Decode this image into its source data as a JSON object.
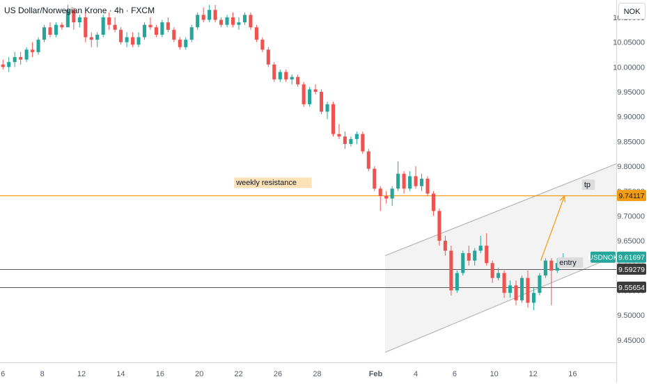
{
  "header": {
    "title": "US Dollar/Norwegian Krone · 4h · FXCM",
    "currency_button": "NOK"
  },
  "chart_data": {
    "type": "candlestick",
    "symbol": "USDNOK",
    "timeframe": "4h",
    "ylim": [
      9.405,
      10.135
    ],
    "xlim": [
      -0.5,
      104
    ],
    "y_ticks": [
      "10.10000",
      "10.05000",
      "10.00000",
      "9.95000",
      "9.90000",
      "9.85000",
      "9.80000",
      "9.75000",
      "9.70000",
      "9.65000",
      "9.60000",
      "9.55000",
      "9.50000",
      "9.45000"
    ],
    "x_ticks": [
      {
        "label": "6",
        "x": 0
      },
      {
        "label": "8",
        "x": 6.66
      },
      {
        "label": "12",
        "x": 13.32
      },
      {
        "label": "14",
        "x": 19.98
      },
      {
        "label": "16",
        "x": 26.64
      },
      {
        "label": "20",
        "x": 33.3
      },
      {
        "label": "22",
        "x": 39.96
      },
      {
        "label": "26",
        "x": 46.62
      },
      {
        "label": "28",
        "x": 53.28
      },
      {
        "label": "Feb",
        "x": 63.2
      },
      {
        "label": "4",
        "x": 70.0
      },
      {
        "label": "6",
        "x": 76.6
      },
      {
        "label": "10",
        "x": 83.3
      },
      {
        "label": "12",
        "x": 89.9
      },
      {
        "label": "16",
        "x": 96.6
      }
    ],
    "colors": {
      "up": "#26a69a",
      "down": "#ef5350",
      "resistance": "#f39c12",
      "level": "#555555",
      "channel": "#b8b8b8",
      "price": "#26a69a",
      "dark_label": "#3b3b3b"
    },
    "candles": [
      [
        10.005,
        10.015,
        9.995,
        10.0
      ],
      [
        10.0,
        10.02,
        9.99,
        10.01
      ],
      [
        10.01,
        10.03,
        10.0,
        10.02
      ],
      [
        10.02,
        10.03,
        10.005,
        10.015
      ],
      [
        10.015,
        10.04,
        10.01,
        10.035
      ],
      [
        10.035,
        10.05,
        10.02,
        10.03
      ],
      [
        10.03,
        10.06,
        10.025,
        10.055
      ],
      [
        10.055,
        10.085,
        10.05,
        10.08
      ],
      [
        10.08,
        10.09,
        10.06,
        10.065
      ],
      [
        10.065,
        10.09,
        10.06,
        10.085
      ],
      [
        10.085,
        10.09,
        10.075,
        10.08
      ],
      [
        10.08,
        10.125,
        10.08,
        10.115
      ],
      [
        10.115,
        10.12,
        10.075,
        10.09
      ],
      [
        10.09,
        10.105,
        10.08,
        10.1
      ],
      [
        10.1,
        10.11,
        10.05,
        10.06
      ],
      [
        10.06,
        10.07,
        10.04,
        10.055
      ],
      [
        10.055,
        10.07,
        10.04,
        10.065
      ],
      [
        10.065,
        10.105,
        10.06,
        10.1
      ],
      [
        10.1,
        10.11,
        10.075,
        10.085
      ],
      [
        10.085,
        10.1,
        10.07,
        10.075
      ],
      [
        10.075,
        10.08,
        10.045,
        10.05
      ],
      [
        10.05,
        10.07,
        10.04,
        10.06
      ],
      [
        10.06,
        10.07,
        10.04,
        10.045
      ],
      [
        10.045,
        10.07,
        10.04,
        10.06
      ],
      [
        10.06,
        10.09,
        10.055,
        10.085
      ],
      [
        10.085,
        10.1,
        10.075,
        10.08
      ],
      [
        10.08,
        10.085,
        10.06,
        10.065
      ],
      [
        10.065,
        10.095,
        10.06,
        10.09
      ],
      [
        10.09,
        10.1,
        10.07,
        10.075
      ],
      [
        10.075,
        10.08,
        10.05,
        10.055
      ],
      [
        10.055,
        10.06,
        10.035,
        10.04
      ],
      [
        10.04,
        10.06,
        10.035,
        10.055
      ],
      [
        10.055,
        10.085,
        10.05,
        10.08
      ],
      [
        10.08,
        10.11,
        10.075,
        10.105
      ],
      [
        10.105,
        10.12,
        10.09,
        10.095
      ],
      [
        10.095,
        10.125,
        10.09,
        10.115
      ],
      [
        10.115,
        10.125,
        10.09,
        10.095
      ],
      [
        10.095,
        10.1,
        10.08,
        10.085
      ],
      [
        10.085,
        10.105,
        10.08,
        10.1
      ],
      [
        10.1,
        10.11,
        10.08,
        10.085
      ],
      [
        10.085,
        10.1,
        10.075,
        10.09
      ],
      [
        10.09,
        10.11,
        10.085,
        10.105
      ],
      [
        10.105,
        10.11,
        10.075,
        10.08
      ],
      [
        10.08,
        10.085,
        10.05,
        10.055
      ],
      [
        10.055,
        10.06,
        10.03,
        10.035
      ],
      [
        10.035,
        10.04,
        10.0,
        10.005
      ],
      [
        10.005,
        10.01,
        9.97,
        9.975
      ],
      [
        9.975,
        9.995,
        9.97,
        9.99
      ],
      [
        9.99,
        9.995,
        9.97,
        9.975
      ],
      [
        9.975,
        9.985,
        9.965,
        9.98
      ],
      [
        9.98,
        9.985,
        9.96,
        9.965
      ],
      [
        9.965,
        9.97,
        9.92,
        9.925
      ],
      [
        9.925,
        9.96,
        9.92,
        9.955
      ],
      [
        9.955,
        9.965,
        9.945,
        9.95
      ],
      [
        9.95,
        9.955,
        9.905,
        9.91
      ],
      [
        9.91,
        9.93,
        9.895,
        9.925
      ],
      [
        9.925,
        9.93,
        9.86,
        9.865
      ],
      [
        9.865,
        9.885,
        9.855,
        9.86
      ],
      [
        9.86,
        9.87,
        9.835,
        9.845
      ],
      [
        9.845,
        9.86,
        9.84,
        9.855
      ],
      [
        9.855,
        9.87,
        9.845,
        9.865
      ],
      [
        9.865,
        9.87,
        9.825,
        9.83
      ],
      [
        9.83,
        9.835,
        9.79,
        9.795
      ],
      [
        9.795,
        9.8,
        9.75,
        9.755
      ],
      [
        9.755,
        9.76,
        9.71,
        9.74
      ],
      [
        9.74,
        9.75,
        9.725,
        9.735
      ],
      [
        9.735,
        9.76,
        9.72,
        9.755
      ],
      [
        9.755,
        9.81,
        9.75,
        9.785
      ],
      [
        9.785,
        9.79,
        9.745,
        9.755
      ],
      [
        9.755,
        9.79,
        9.75,
        9.78
      ],
      [
        9.78,
        9.8,
        9.755,
        9.76
      ],
      [
        9.76,
        9.785,
        9.75,
        9.775
      ],
      [
        9.775,
        9.78,
        9.74,
        9.745
      ],
      [
        9.745,
        9.75,
        9.7,
        9.71
      ],
      [
        9.71,
        9.715,
        9.64,
        9.65
      ],
      [
        9.65,
        9.66,
        9.62,
        9.63
      ],
      [
        9.63,
        9.64,
        9.54,
        9.55
      ],
      [
        9.55,
        9.59,
        9.545,
        9.585
      ],
      [
        9.585,
        9.63,
        9.58,
        9.625
      ],
      [
        9.625,
        9.64,
        9.6,
        9.61
      ],
      [
        9.61,
        9.635,
        9.6,
        9.63
      ],
      [
        9.63,
        9.66,
        9.625,
        9.64
      ],
      [
        9.64,
        9.665,
        9.6,
        9.605
      ],
      [
        9.605,
        9.61,
        9.565,
        9.575
      ],
      [
        9.575,
        9.595,
        9.57,
        9.585
      ],
      [
        9.585,
        9.59,
        9.535,
        9.545
      ],
      [
        9.545,
        9.57,
        9.535,
        9.56
      ],
      [
        9.56,
        9.57,
        9.52,
        9.53
      ],
      [
        9.53,
        9.58,
        9.525,
        9.575
      ],
      [
        9.575,
        9.59,
        9.515,
        9.525
      ],
      [
        9.525,
        9.555,
        9.51,
        9.545
      ],
      [
        9.545,
        9.585,
        9.54,
        9.58
      ],
      [
        9.58,
        9.615,
        9.575,
        9.61
      ],
      [
        9.61,
        9.615,
        9.52,
        9.59
      ],
      [
        9.59,
        9.615,
        9.585,
        9.605
      ],
      [
        9.605,
        9.625,
        9.6,
        9.615
      ]
    ],
    "horizontal_lines": [
      {
        "name": "weekly-resistance-line",
        "price": 9.74117,
        "label": "9.74117",
        "color": "#f39c12"
      },
      {
        "name": "entry-level-line",
        "price": 9.59279,
        "label": "9.59279",
        "color": "#555555"
      },
      {
        "name": "support-level-line",
        "price": 9.55654,
        "label": "9.55654",
        "color": "#555555"
      }
    ],
    "current_price": {
      "symbol": "USDNOK",
      "price": 9.61697,
      "label": "9.61697"
    },
    "channel": {
      "upper": [
        [
          64.8,
          9.62
        ],
        [
          104.0,
          9.805
        ]
      ],
      "lower": [
        [
          64.8,
          9.425
        ],
        [
          104.0,
          9.62
        ]
      ],
      "fill": "#f2f2f2"
    },
    "arrow": {
      "from": [
        91.2,
        9.61
      ],
      "to": [
        95.2,
        9.74
      ]
    },
    "annotations": [
      {
        "name": "weekly-resistance-label",
        "text": "weekly resistance",
        "x": 39.2,
        "y": 9.762,
        "style": "orange"
      },
      {
        "name": "tp-label",
        "text": "tp",
        "x": 98.2,
        "y": 9.758,
        "style": "grey"
      },
      {
        "name": "entry-label",
        "text": "entry",
        "x": 94.0,
        "y": 9.601,
        "style": "grey"
      }
    ]
  }
}
